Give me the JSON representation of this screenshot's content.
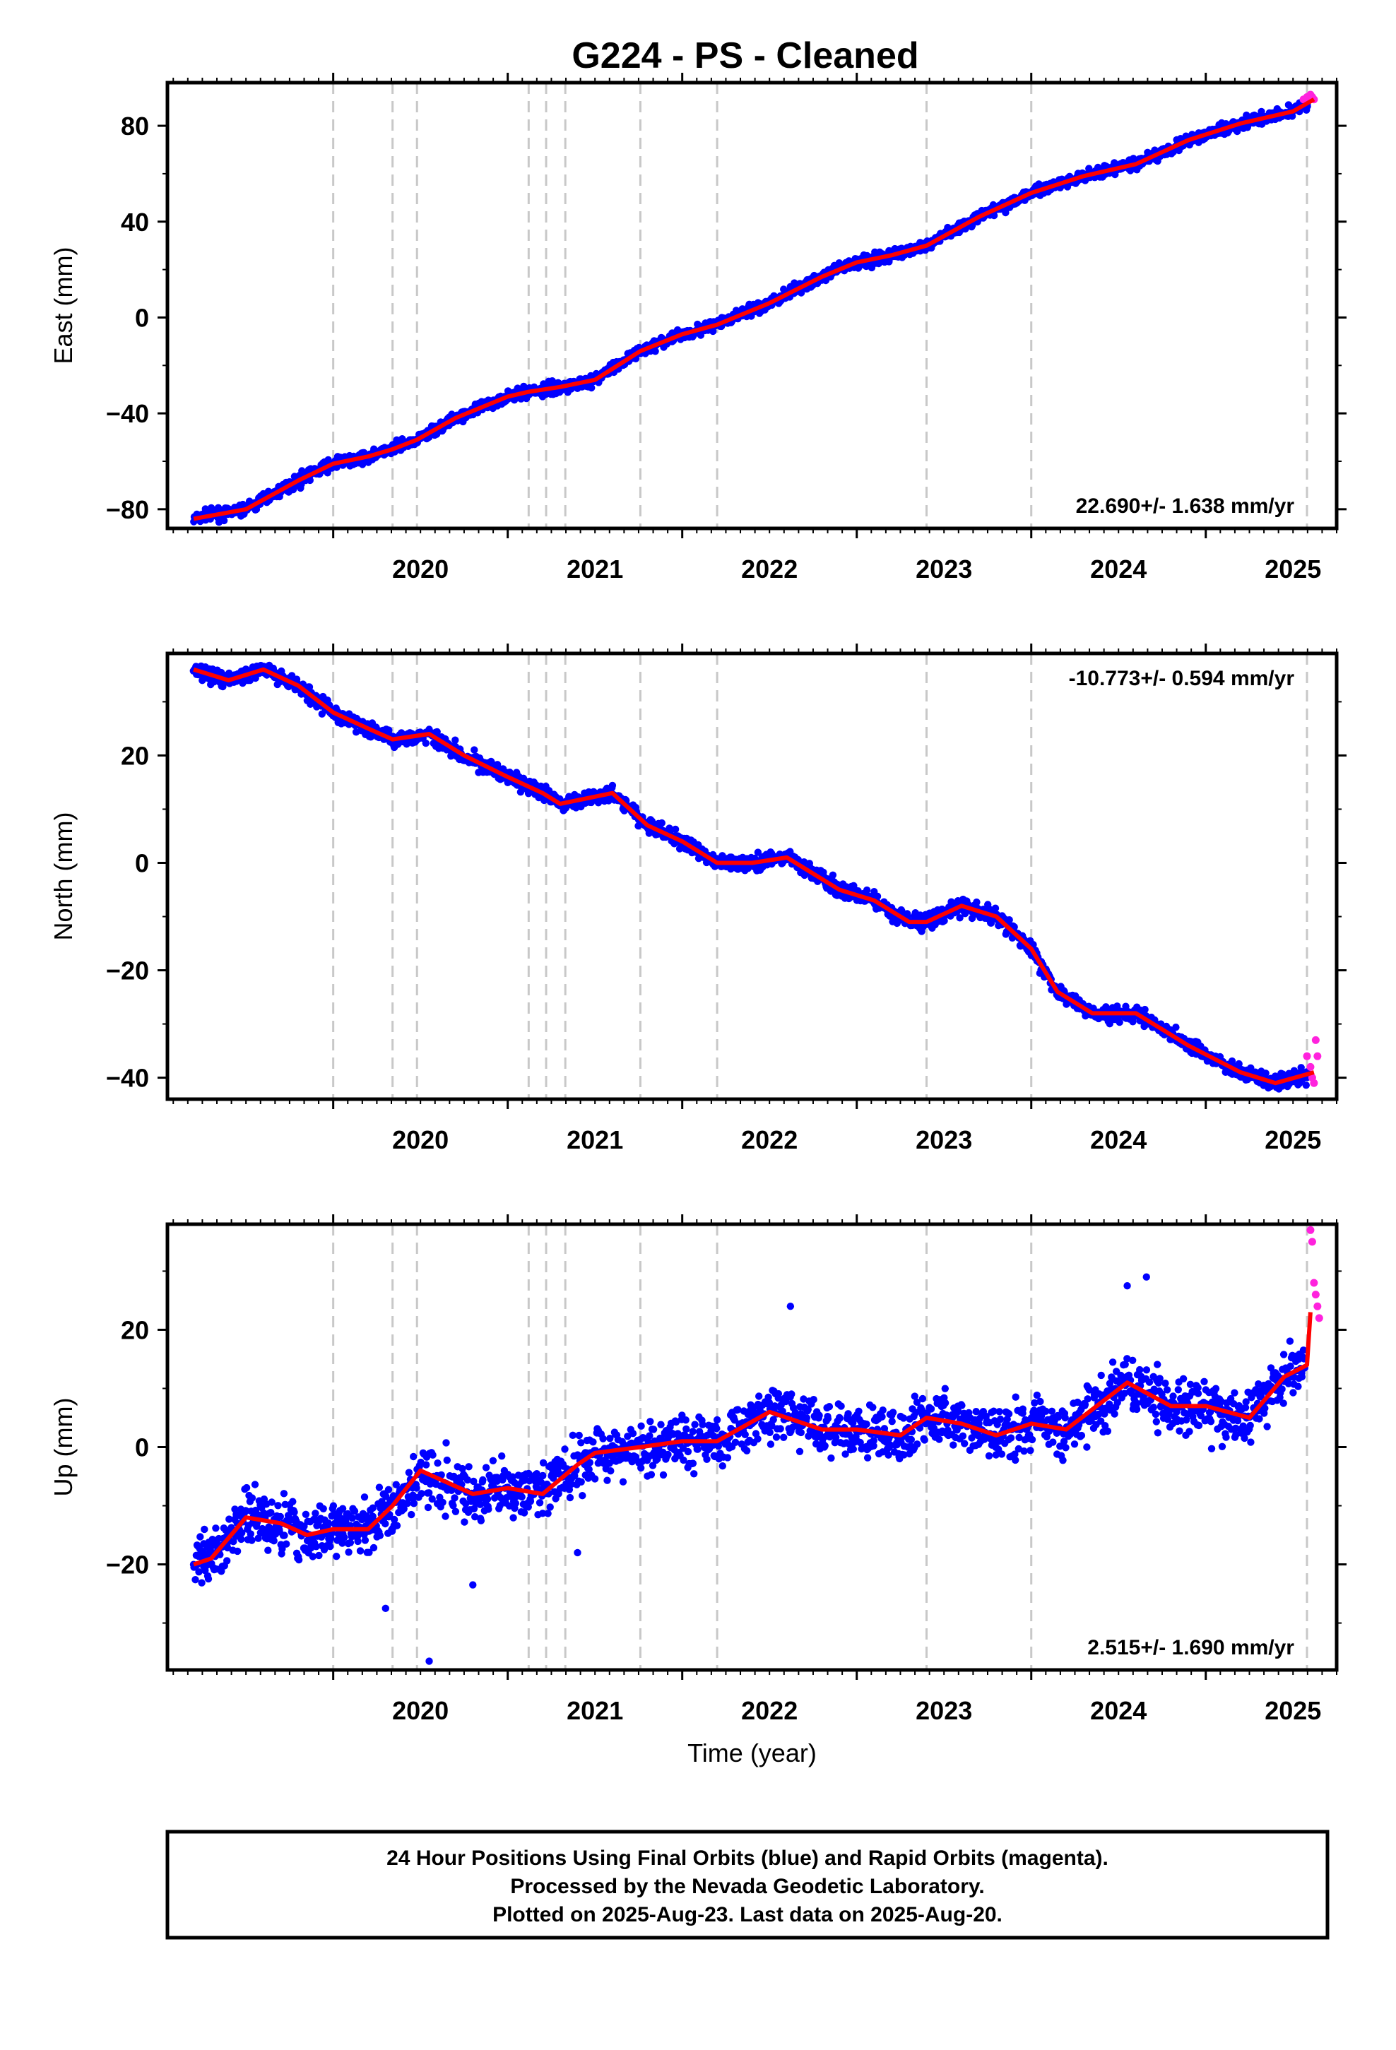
{
  "title": "G224  - PS - Cleaned",
  "colors": {
    "final": "#0000ff",
    "rapid": "#ff22dd",
    "model": "#ff0000",
    "event": "#c8c8c8"
  },
  "chart_data": [
    {
      "type": "scatter",
      "ylabel": "East (mm)",
      "rate_label": "22.690+/- 1.638 mm/yr",
      "xlim": [
        2019.05,
        2025.75
      ],
      "ylim": [
        -88,
        98
      ],
      "yticks": [
        -80,
        -40,
        0,
        40,
        80
      ],
      "ytick_labels": [
        "−80",
        "−40",
        "0",
        "40",
        "80"
      ],
      "xticks": [
        2020,
        2021,
        2022,
        2023,
        2024,
        2025
      ],
      "xtick_labels": [
        "2020",
        "2021",
        "2022",
        "2023",
        "2024",
        "2025"
      ],
      "events": [
        2020.0,
        2020.34,
        2020.48,
        2021.12,
        2021.22,
        2021.33,
        2021.76,
        2022.2,
        2023.4,
        2024.0,
        2025.58
      ],
      "model": {
        "x": [
          2019.2,
          2019.5,
          2019.8,
          2020.0,
          2020.2,
          2020.34,
          2020.48,
          2020.7,
          2021.0,
          2021.12,
          2021.3,
          2021.5,
          2021.76,
          2022.0,
          2022.2,
          2022.5,
          2022.8,
          2023.0,
          2023.2,
          2023.4,
          2023.7,
          2024.0,
          2024.3,
          2024.6,
          2024.9,
          2025.2,
          2025.5,
          2025.62
        ],
        "y": [
          -84,
          -80,
          -68,
          -61,
          -58,
          -55,
          -51,
          -42,
          -33,
          -31,
          -29,
          -26,
          -14,
          -7,
          -3,
          6,
          17,
          23,
          26,
          30,
          42,
          52,
          59,
          64,
          74,
          81,
          86,
          91
        ]
      },
      "noise": 2.2,
      "spikes": [],
      "rapid": {
        "x": [
          2025.56,
          2025.58,
          2025.6,
          2025.61,
          2025.62
        ],
        "y": [
          91,
          92,
          93,
          92,
          91
        ]
      }
    },
    {
      "type": "scatter",
      "ylabel": "North (mm)",
      "rate_label": "-10.773+/- 0.594 mm/yr",
      "xlim": [
        2019.05,
        2025.75
      ],
      "ylim": [
        -44,
        39
      ],
      "yticks": [
        -40,
        -20,
        0,
        20
      ],
      "ytick_labels": [
        "−40",
        "−20",
        "0",
        "20"
      ],
      "xticks": [
        2020,
        2021,
        2022,
        2023,
        2024,
        2025
      ],
      "xtick_labels": [
        "2020",
        "2021",
        "2022",
        "2023",
        "2024",
        "2025"
      ],
      "events": [
        2020.0,
        2020.34,
        2020.48,
        2021.12,
        2021.22,
        2021.33,
        2021.76,
        2022.2,
        2023.4,
        2024.0,
        2025.58
      ],
      "model": {
        "x": [
          2019.2,
          2019.4,
          2019.6,
          2019.8,
          2020.0,
          2020.2,
          2020.34,
          2020.55,
          2020.75,
          2021.0,
          2021.2,
          2021.3,
          2021.6,
          2021.8,
          2022.0,
          2022.2,
          2022.4,
          2022.6,
          2022.9,
          2023.1,
          2023.3,
          2023.4,
          2023.6,
          2023.8,
          2024.0,
          2024.15,
          2024.35,
          2024.6,
          2024.9,
          2025.2,
          2025.4,
          2025.62
        ],
        "y": [
          36,
          34,
          36,
          33,
          28,
          25,
          23,
          24,
          20,
          16,
          13,
          11,
          13,
          7,
          4,
          0,
          0,
          1,
          -5,
          -7,
          -11,
          -11,
          -8,
          -10,
          -16,
          -24,
          -28,
          -28,
          -34,
          -39,
          -41,
          -39
        ]
      },
      "noise": 1.3,
      "spikes": [],
      "rapid": {
        "x": [
          2025.58,
          2025.6,
          2025.61,
          2025.62,
          2025.63,
          2025.64
        ],
        "y": [
          -36,
          -38,
          -40,
          -41,
          -33,
          -36
        ]
      }
    },
    {
      "type": "scatter",
      "ylabel": "Up (mm)",
      "xlabel": "Time (year)",
      "rate_label": "2.515+/- 1.690 mm/yr",
      "xlim": [
        2019.05,
        2025.75
      ],
      "ylim": [
        -38,
        38
      ],
      "yticks": [
        -20,
        0,
        20
      ],
      "ytick_labels": [
        "−20",
        "0",
        "20"
      ],
      "xticks": [
        2020,
        2021,
        2022,
        2023,
        2024,
        2025
      ],
      "xtick_labels": [
        "2020",
        "2021",
        "2022",
        "2023",
        "2024",
        "2025"
      ],
      "events": [
        2020.0,
        2020.34,
        2020.48,
        2021.12,
        2021.22,
        2021.33,
        2021.76,
        2022.2,
        2023.4,
        2024.0,
        2025.58
      ],
      "model": {
        "x": [
          2019.2,
          2019.3,
          2019.5,
          2019.7,
          2019.85,
          2020.0,
          2020.2,
          2020.34,
          2020.5,
          2020.8,
          2021.0,
          2021.2,
          2021.4,
          2021.5,
          2021.76,
          2022.0,
          2022.2,
          2022.5,
          2022.8,
          2023.0,
          2023.25,
          2023.4,
          2023.6,
          2023.8,
          2024.0,
          2024.2,
          2024.55,
          2024.8,
          2025.0,
          2025.25,
          2025.45,
          2025.58,
          2025.6
        ],
        "y": [
          -20,
          -19,
          -12,
          -13,
          -15,
          -14,
          -14,
          -10,
          -4,
          -8,
          -7,
          -8,
          -3,
          -1,
          0,
          1,
          1,
          6,
          3,
          3,
          2,
          5,
          4,
          2,
          4,
          3,
          11,
          7,
          7,
          5,
          12,
          14,
          23
        ]
      },
      "noise": 4.2,
      "spikes": [
        {
          "x": 2020.3,
          "y": -27.5
        },
        {
          "x": 2020.55,
          "y": -36.5
        },
        {
          "x": 2020.8,
          "y": -23.5
        },
        {
          "x": 2022.62,
          "y": 24.0
        },
        {
          "x": 2024.66,
          "y": 29.0
        },
        {
          "x": 2024.55,
          "y": 27.5
        },
        {
          "x": 2021.4,
          "y": -18.0
        }
      ],
      "rapid": {
        "x": [
          2025.6,
          2025.61,
          2025.62,
          2025.63,
          2025.64,
          2025.65
        ],
        "y": [
          37,
          35,
          28,
          26,
          24,
          22
        ]
      }
    }
  ],
  "footer": {
    "line1": "24 Hour Positions Using Final Orbits (blue) and Rapid Orbits (magenta).",
    "line2": "Processed by the Nevada Geodetic Laboratory.",
    "line3": "Plotted on 2025-Aug-23. Last data on 2025-Aug-20."
  }
}
